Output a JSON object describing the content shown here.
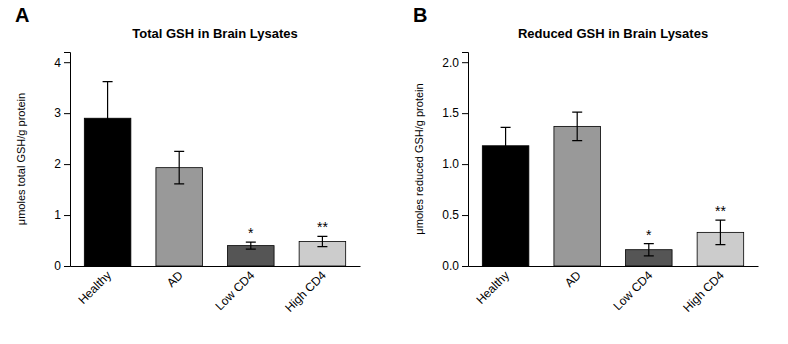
{
  "chart_data": [
    {
      "type": "bar",
      "title": "Total GSH in Brain Lysates",
      "ylabel": "μmoles total GSH/g protein",
      "categories": [
        "Healthy",
        "AD",
        "Low CD4",
        "High CD4"
      ],
      "values": [
        2.9,
        1.93,
        0.4,
        0.48
      ],
      "errors": [
        0.72,
        0.32,
        0.07,
        0.1
      ],
      "colors": [
        "#000000",
        "#999999",
        "#555555",
        "#cccccc"
      ],
      "ylim": [
        0,
        4.2
      ],
      "yticks": [
        0,
        1,
        2,
        3,
        4
      ],
      "grid": false,
      "annotations": [
        {
          "text": "A"
        },
        {
          "text": "*",
          "category": "Low CD4"
        },
        {
          "text": "**",
          "category": "High CD4"
        }
      ]
    },
    {
      "type": "bar",
      "title": "Reduced GSH in Brain Lysates",
      "ylabel": "μmoles reduced GSH/g protein",
      "categories": [
        "Healthy",
        "AD",
        "Low CD4",
        "High CD4"
      ],
      "values": [
        1.18,
        1.37,
        0.16,
        0.33
      ],
      "errors": [
        0.18,
        0.14,
        0.06,
        0.12
      ],
      "colors": [
        "#000000",
        "#999999",
        "#555555",
        "#cccccc"
      ],
      "ylim": [
        0,
        2.1
      ],
      "yticks": [
        {
          "value": 0,
          "label": "0.0"
        },
        0.5,
        {
          "value": 1,
          "label": "1.0"
        },
        1.5,
        {
          "value": 2,
          "label": "2.0"
        }
      ],
      "grid": false,
      "annotations": [
        {
          "text": "B"
        },
        {
          "text": "*",
          "category": "Low CD4"
        },
        {
          "text": "**",
          "category": "High CD4"
        }
      ]
    }
  ]
}
